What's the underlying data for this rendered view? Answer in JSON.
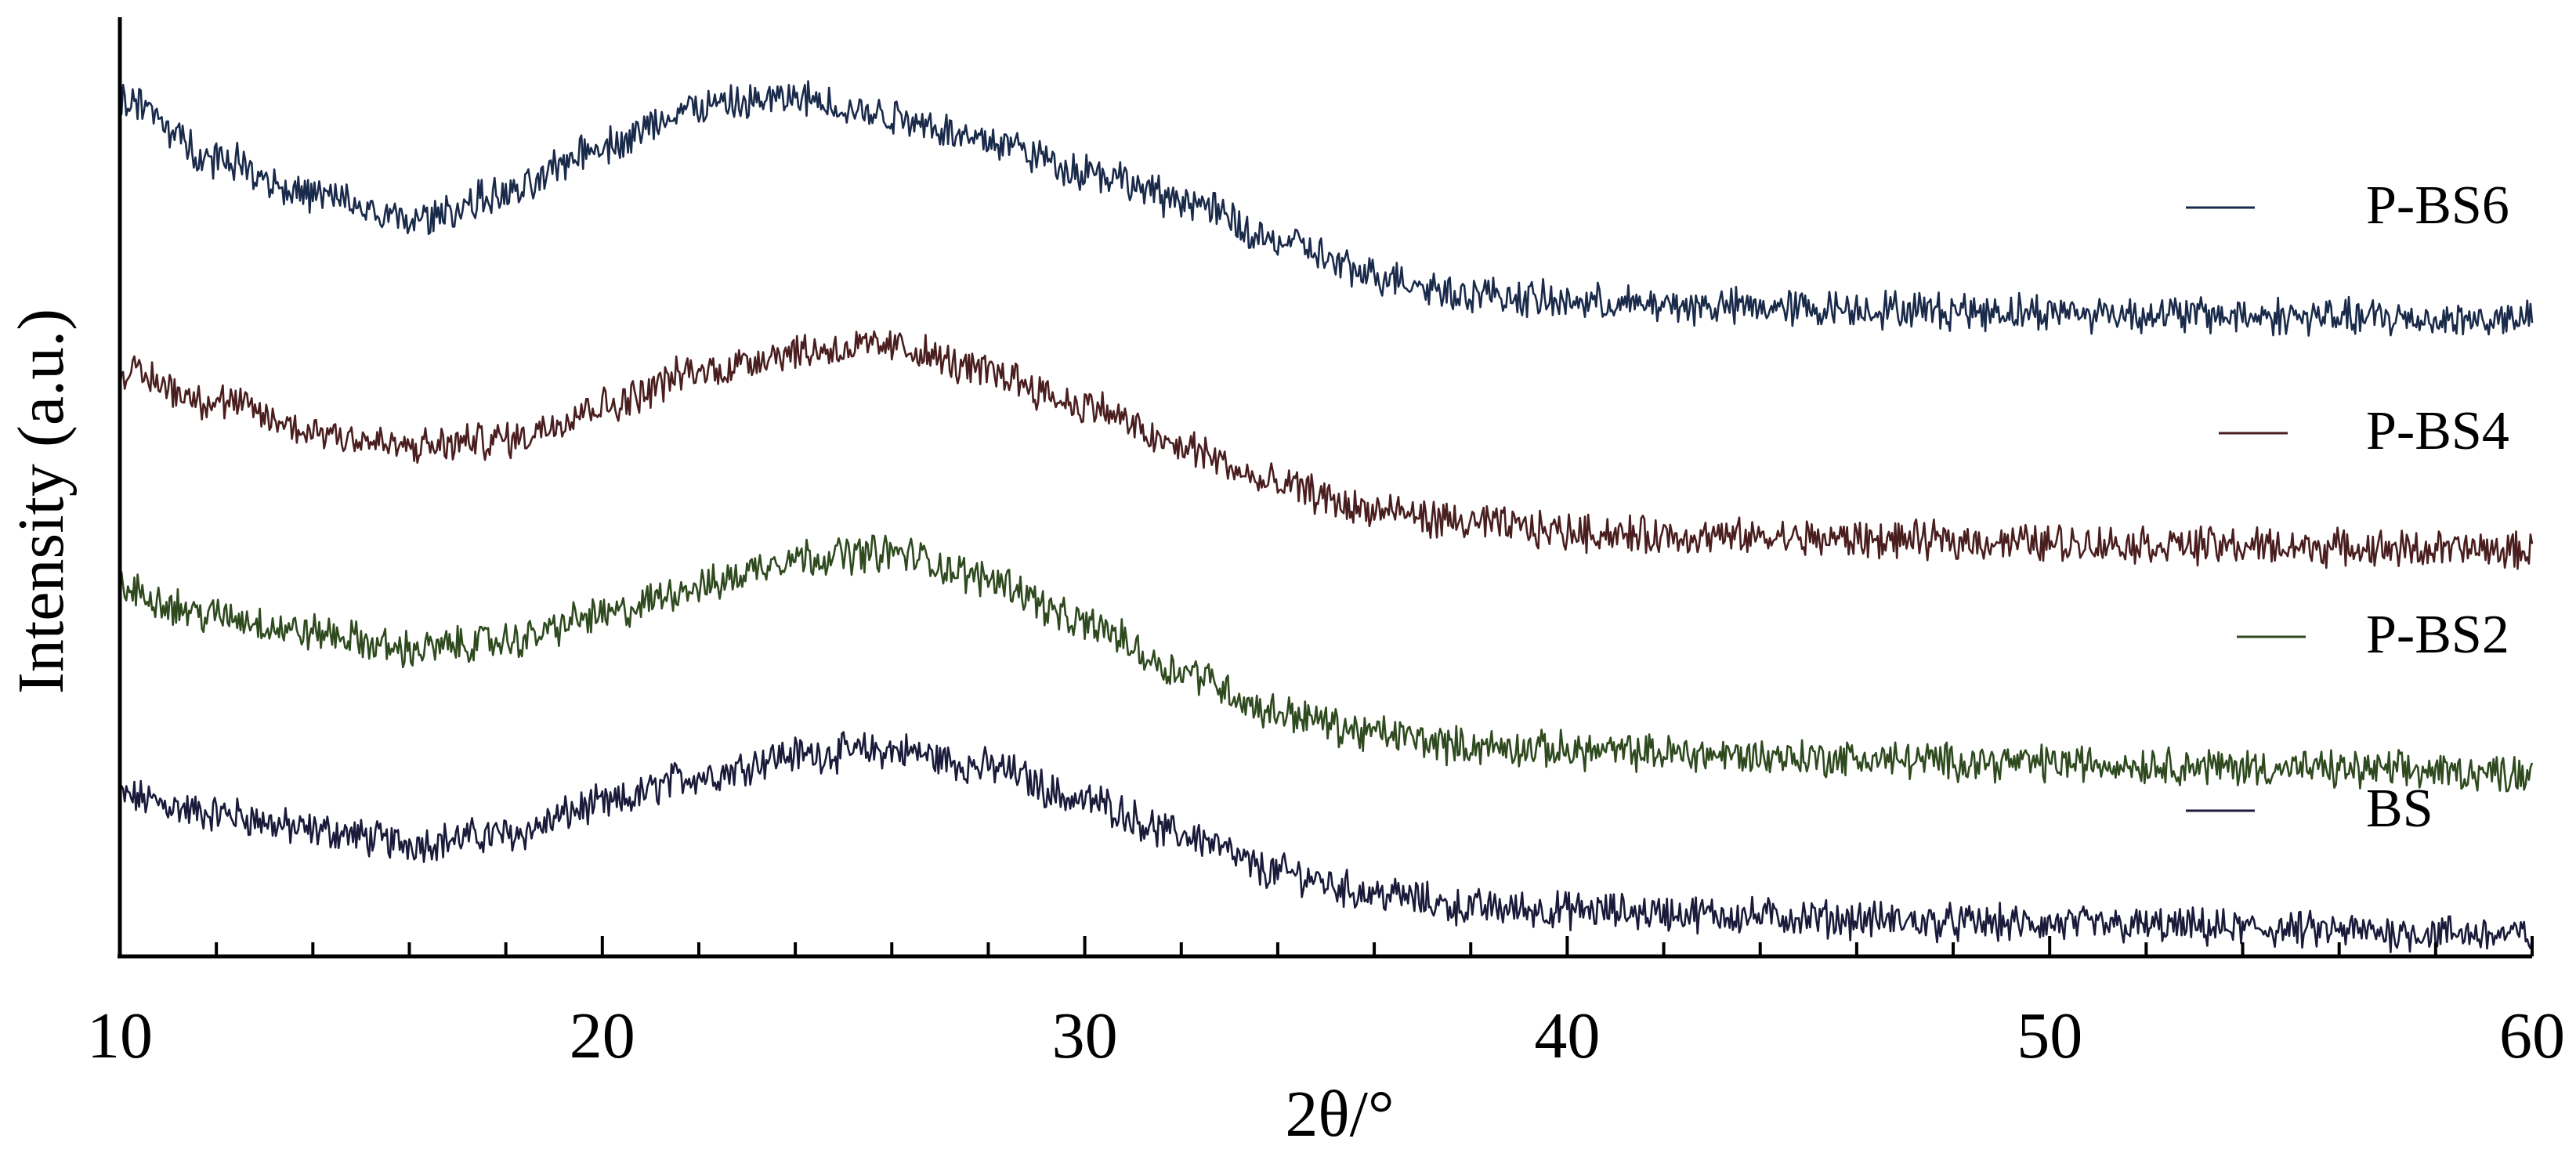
{
  "chart_data": {
    "type": "line",
    "title": "",
    "xlabel": "2θ/°",
    "ylabel": "Intensity (a.u.)",
    "xlim": [
      10,
      60
    ],
    "x_ticks": [
      10,
      20,
      30,
      40,
      50,
      60
    ],
    "x_tick_labels": [
      "10",
      "20",
      "30",
      "40",
      "50",
      "60"
    ],
    "x_minor_step": 2,
    "y_ticks_shown": false,
    "ylim": [
      0,
      1100
    ],
    "grid": false,
    "legend_position": "right",
    "x_knots": [
      10,
      12,
      14,
      16,
      18,
      20,
      22,
      24,
      26,
      28,
      30,
      32,
      34,
      36,
      38,
      40,
      42,
      44,
      46,
      48,
      50,
      52,
      54,
      56,
      58,
      60
    ],
    "series": [
      {
        "name": "BS",
        "color": "#1a1a3a",
        "values": [
          190,
          170,
          150,
          135,
          145,
          180,
          215,
          240,
          245,
          225,
          185,
          145,
          100,
          75,
          58,
          55,
          52,
          48,
          44,
          40,
          38,
          36,
          33,
          30,
          28,
          25
        ]
      },
      {
        "name": "P-BS2",
        "color": "#2e4a1e",
        "values": [
          435,
          405,
          385,
          365,
          375,
          405,
          440,
          475,
          480,
          450,
          395,
          340,
          290,
          265,
          250,
          245,
          242,
          238,
          235,
          232,
          230,
          228,
          225,
          222,
          220,
          218
        ]
      },
      {
        "name": "P-BS4",
        "color": "#4a1e1e",
        "values": [
          695,
          660,
          625,
          605,
          615,
          655,
          695,
          720,
          725,
          695,
          655,
          605,
          560,
          530,
          515,
          505,
          500,
          498,
          496,
          494,
          492,
          490,
          488,
          486,
          484,
          482
        ]
      },
      {
        "name": "P-BS6",
        "color": "#1a2a4a",
        "values": [
          1020,
          950,
          905,
          875,
          905,
          965,
          1010,
          1020,
          1000,
          970,
          935,
          900,
          850,
          810,
          788,
          778,
          774,
          772,
          770,
          768,
          766,
          764,
          762,
          760,
          758,
          756
        ]
      }
    ]
  }
}
